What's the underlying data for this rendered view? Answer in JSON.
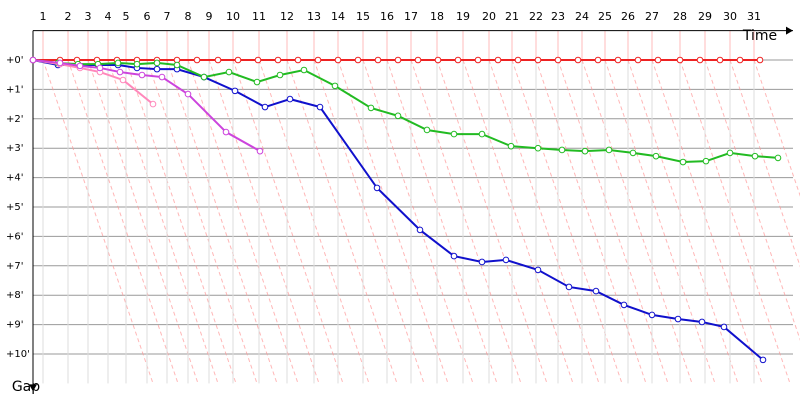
{
  "chart_data": {
    "type": "line",
    "x_label": "Time",
    "y_label": "Gap",
    "xlim": [
      0,
      76
    ],
    "ylim": [
      -1,
      11
    ],
    "xticks": [
      {
        "value": 1.0,
        "label": "1"
      },
      {
        "value": 3.5,
        "label": "2"
      },
      {
        "value": 5.5,
        "label": "3"
      },
      {
        "value": 7.5,
        "label": "4"
      },
      {
        "value": 9.3,
        "label": "5"
      },
      {
        "value": 11.4,
        "label": "6"
      },
      {
        "value": 13.4,
        "label": "7"
      },
      {
        "value": 15.5,
        "label": "8"
      },
      {
        "value": 17.6,
        "label": "9"
      },
      {
        "value": 20.0,
        "label": "10"
      },
      {
        "value": 22.6,
        "label": "11"
      },
      {
        "value": 25.4,
        "label": "12"
      },
      {
        "value": 28.1,
        "label": "13"
      },
      {
        "value": 30.5,
        "label": "14"
      },
      {
        "value": 33.0,
        "label": "15"
      },
      {
        "value": 35.4,
        "label": "16"
      },
      {
        "value": 37.8,
        "label": "17"
      },
      {
        "value": 40.4,
        "label": "18"
      },
      {
        "value": 43.0,
        "label": "19"
      },
      {
        "value": 45.6,
        "label": "20"
      },
      {
        "value": 47.9,
        "label": "21"
      },
      {
        "value": 50.3,
        "label": "22"
      },
      {
        "value": 52.5,
        "label": "23"
      },
      {
        "value": 54.9,
        "label": "24"
      },
      {
        "value": 57.2,
        "label": "25"
      },
      {
        "value": 59.5,
        "label": "26"
      },
      {
        "value": 61.9,
        "label": "27"
      },
      {
        "value": 64.7,
        "label": "28"
      },
      {
        "value": 67.2,
        "label": "29"
      },
      {
        "value": 69.7,
        "label": "30"
      },
      {
        "value": 72.1,
        "label": "31"
      }
    ],
    "yticks": [
      {
        "value": 0,
        "label": "+0'"
      },
      {
        "value": 1,
        "label": "+1'"
      },
      {
        "value": 2,
        "label": "+2'"
      },
      {
        "value": 3,
        "label": "+3'"
      },
      {
        "value": 4,
        "label": "+4'"
      },
      {
        "value": 5,
        "label": "+5'"
      },
      {
        "value": 6,
        "label": "+6'"
      },
      {
        "value": 7,
        "label": "+7'"
      },
      {
        "value": 8,
        "label": "+8'"
      },
      {
        "value": 9,
        "label": "+9'"
      },
      {
        "value": 10,
        "label": "+10'"
      }
    ],
    "y_inverted": true,
    "grid": true,
    "series": [
      {
        "color": "#ee2222",
        "x": [
          0,
          2.7,
          4.4,
          6.4,
          8.4,
          10.4,
          12.4,
          14.4,
          16.4,
          18.5,
          20.5,
          22.5,
          24.5,
          26.5,
          28.5,
          30.5,
          32.5,
          34.5,
          36.5,
          38.5,
          40.5,
          42.5,
          44.5,
          46.5,
          48.5,
          50.5,
          52.5,
          54.5,
          56.5,
          58.5,
          60.5,
          62.5,
          64.7,
          66.7,
          68.7,
          70.7,
          72.7
        ],
        "values": [
          0,
          0,
          0,
          0,
          0,
          0,
          0,
          0,
          0,
          0,
          0,
          0,
          0,
          0,
          0,
          0,
          0,
          0,
          0,
          0,
          0,
          0,
          0,
          0,
          0,
          0,
          0,
          0,
          0,
          0,
          0,
          0,
          0,
          0,
          0,
          0,
          0
        ]
      },
      {
        "color": "#1010cc",
        "x": [
          0,
          2.5,
          4.5,
          6.5,
          8.5,
          10.4,
          12.4,
          14.4,
          17.1,
          20.2,
          23.2,
          25.7,
          28.7,
          34.4,
          38.7,
          42.1,
          44.9,
          47.3,
          50.5,
          53.6,
          56.3,
          59.1,
          61.9,
          64.5,
          66.9,
          69.1,
          73.0
        ],
        "values": [
          0,
          0.17,
          0.17,
          0.17,
          0.17,
          0.27,
          0.31,
          0.31,
          0.58,
          1.05,
          1.6,
          1.33,
          1.6,
          4.35,
          5.78,
          6.67,
          6.87,
          6.8,
          7.14,
          7.72,
          7.86,
          8.33,
          8.67,
          8.81,
          8.91,
          9.08,
          10.2
        ]
      },
      {
        "color": "#22bb22",
        "x": [
          0,
          2.5,
          4.5,
          6.5,
          8.5,
          10.4,
          12.4,
          14.4,
          17.1,
          19.6,
          22.4,
          24.7,
          27.1,
          30.2,
          33.8,
          36.5,
          39.4,
          42.1,
          44.9,
          47.8,
          50.5,
          52.9,
          55.2,
          57.6,
          60.0,
          62.3,
          65.0,
          67.3,
          69.7,
          72.2,
          74.5
        ],
        "values": [
          0,
          0.1,
          0.14,
          0.14,
          0.1,
          0.14,
          0.1,
          0.17,
          0.58,
          0.41,
          0.75,
          0.51,
          0.34,
          0.88,
          1.63,
          1.9,
          2.38,
          2.52,
          2.52,
          2.93,
          3.0,
          3.06,
          3.1,
          3.06,
          3.16,
          3.27,
          3.47,
          3.44,
          3.16,
          3.27,
          3.33
        ]
      },
      {
        "color": "#ff88bb",
        "x": [
          0,
          2.7,
          4.7,
          6.7,
          9.0,
          12.0
        ],
        "values": [
          0,
          0.14,
          0.27,
          0.41,
          0.68,
          1.5
        ]
      },
      {
        "color": "#cc44dd",
        "x": [
          0,
          2.7,
          4.7,
          6.7,
          8.7,
          10.9,
          12.9,
          15.5,
          19.3,
          22.7
        ],
        "values": [
          0,
          0.1,
          0.2,
          0.27,
          0.41,
          0.51,
          0.58,
          1.16,
          2.45,
          3.1
        ]
      }
    ]
  }
}
